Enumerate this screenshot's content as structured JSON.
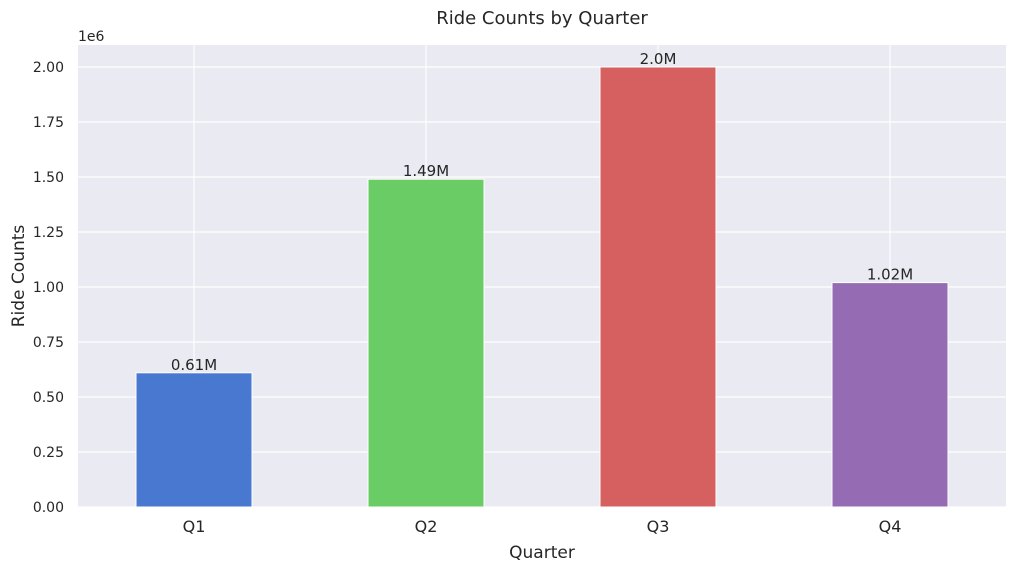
{
  "chart_data": {
    "type": "bar",
    "title": "Ride Counts by Quarter",
    "xlabel": "Quarter",
    "ylabel": "Ride Counts",
    "y_scale_label": "1e6",
    "categories": [
      "Q1",
      "Q2",
      "Q3",
      "Q4"
    ],
    "values": [
      610000,
      1490000,
      2000000,
      1020000
    ],
    "data_labels": [
      "0.61M",
      "1.49M",
      "2.0M",
      "1.02M"
    ],
    "colors": [
      "#4878cf",
      "#6acc65",
      "#d65f5f",
      "#956cb4"
    ],
    "ylim": [
      0,
      2100000
    ],
    "yticks": [
      0,
      250000,
      500000,
      750000,
      1000000,
      1250000,
      1500000,
      1750000,
      2000000
    ],
    "ytick_labels": [
      "0.00",
      "0.25",
      "0.50",
      "0.75",
      "1.00",
      "1.25",
      "1.50",
      "1.75",
      "2.00"
    ],
    "grid": true,
    "background": "#eaeaf2"
  }
}
